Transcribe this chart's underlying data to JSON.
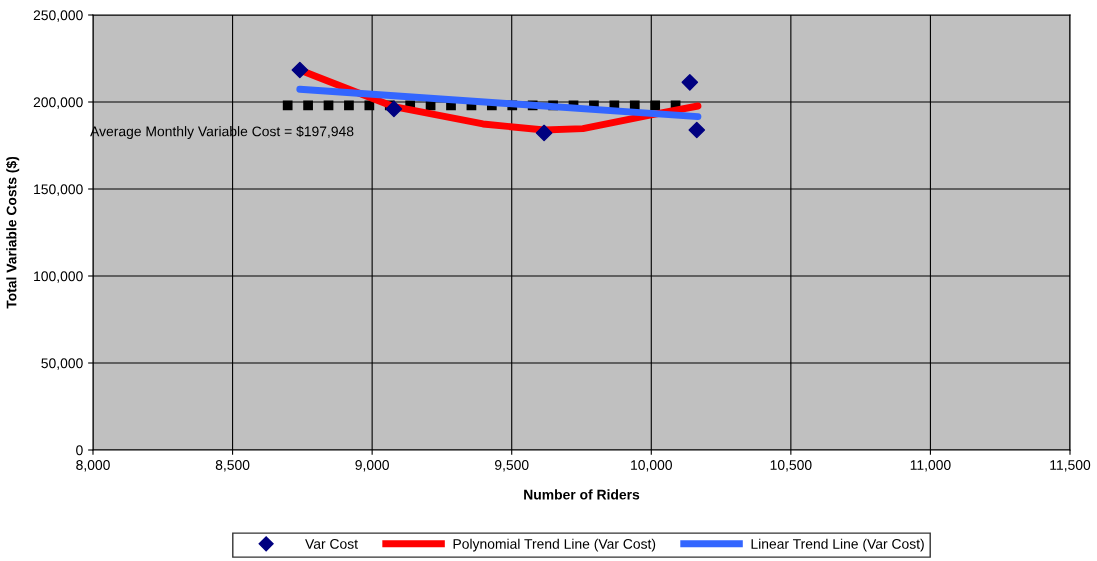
{
  "chart_data": {
    "type": "scatter",
    "xlabel": "Number of Riders",
    "ylabel": "Total Variable Costs ($)",
    "xlim": [
      8000,
      11500
    ],
    "ylim": [
      0,
      250000
    ],
    "xticks": [
      {
        "value": 8000,
        "label": "8,000"
      },
      {
        "value": 8500,
        "label": "8,500"
      },
      {
        "value": 9000,
        "label": "9,000"
      },
      {
        "value": 9500,
        "label": "9,500"
      },
      {
        "value": 10000,
        "label": "10,000"
      },
      {
        "value": 10500,
        "label": "10,500"
      },
      {
        "value": 11000,
        "label": "11,000"
      },
      {
        "value": 11500,
        "label": "11,500"
      }
    ],
    "yticks": [
      0,
      {
        "value": 50000,
        "label": "50,000"
      },
      {
        "value": 100000,
        "label": "100,000"
      },
      {
        "value": 150000,
        "label": "150,000"
      },
      {
        "value": 200000,
        "label": "200,000"
      },
      {
        "value": 250000,
        "label": "250,000"
      }
    ],
    "grid": true,
    "legend": "bottom",
    "annotations": [
      "Average Monthly Variable Cost = $197,948"
    ],
    "series": [
      {
        "name": "Var Cost",
        "marker": "diamond",
        "color": "#000080",
        "x": [
          8741,
          9078,
          9616,
          10138,
          10163
        ],
        "values": [
          218400,
          196000,
          182200,
          211300,
          183900
        ]
      },
      {
        "name": "Polynomial Trend Line (Var Cost)",
        "type": "line",
        "line_style": "solid",
        "color": "#ff0000",
        "x": [
          8741,
          8802,
          9078,
          9397,
          9616,
          9755,
          9995,
          10167
        ],
        "values": [
          218400,
          214500,
          197300,
          187400,
          183900,
          184700,
          192500,
          197700
        ]
      },
      {
        "name": "Linear Trend Line (Var Cost)",
        "type": "line",
        "line_style": "solid",
        "color": "#3366ff",
        "x": [
          8741,
          10167
        ],
        "values": [
          207300,
          191600
        ]
      },
      {
        "type": "line",
        "line_style": "dotted",
        "color": "#000000",
        "x": [
          8680,
          10140
        ],
        "values": [
          198000,
          198000
        ]
      }
    ]
  }
}
